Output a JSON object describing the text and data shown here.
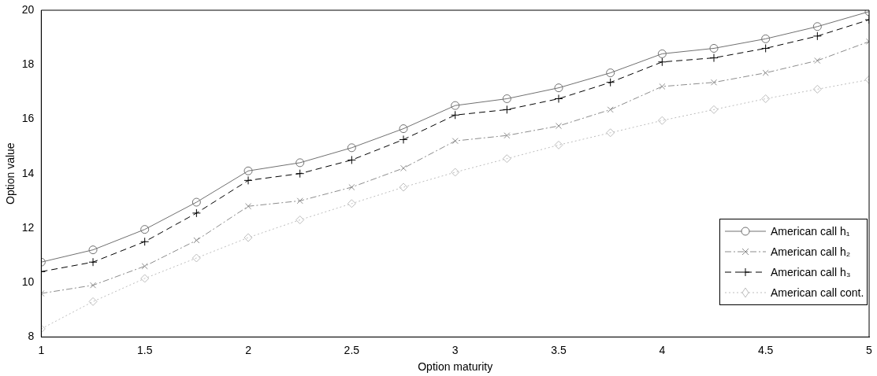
{
  "chart_data": {
    "type": "line",
    "xlabel": "Option maturity",
    "ylabel": "Option value",
    "x": [
      1,
      1.25,
      1.5,
      1.75,
      2,
      2.25,
      2.5,
      2.75,
      3,
      3.25,
      3.5,
      3.75,
      4,
      4.25,
      4.5,
      4.75,
      5
    ],
    "xlim": [
      1,
      5
    ],
    "xticks": [
      1,
      1.5,
      2,
      2.5,
      3,
      3.5,
      4,
      4.5,
      5
    ],
    "ylim": [
      8,
      20
    ],
    "yticks": [
      8,
      10,
      12,
      14,
      16,
      18,
      20
    ],
    "grid": false,
    "legend": "bottom right",
    "series": [
      {
        "name": "American call h₁",
        "color": "#707070",
        "marker": "circle",
        "line_style": "solid",
        "values": [
          10.75,
          11.2,
          11.95,
          12.95,
          14.1,
          14.4,
          14.95,
          15.65,
          16.5,
          16.75,
          17.15,
          17.7,
          18.4,
          18.6,
          18.95,
          19.4,
          19.95
        ]
      },
      {
        "name": "American call h₂",
        "color": "#8c8c8c",
        "marker": "cross",
        "line_style": "dashdot",
        "values": [
          9.6,
          9.9,
          10.6,
          11.55,
          12.8,
          13.0,
          13.5,
          14.2,
          15.2,
          15.4,
          15.75,
          16.35,
          17.2,
          17.35,
          17.7,
          18.15,
          18.85
        ]
      },
      {
        "name": "American call h₃",
        "color": "#000000",
        "marker": "plus",
        "line_style": "dashed",
        "values": [
          10.4,
          10.75,
          11.5,
          12.55,
          13.75,
          14.0,
          14.5,
          15.25,
          16.15,
          16.35,
          16.75,
          17.35,
          18.1,
          18.25,
          18.6,
          19.05,
          19.65
        ]
      },
      {
        "name": "American call cont.",
        "color": "#bdbdbd",
        "marker": "diamond",
        "line_style": "dotted",
        "values": [
          8.3,
          9.3,
          10.15,
          10.9,
          11.65,
          12.3,
          12.9,
          13.5,
          14.05,
          14.55,
          15.05,
          15.5,
          15.95,
          16.35,
          16.75,
          17.1,
          17.45
        ]
      }
    ]
  }
}
